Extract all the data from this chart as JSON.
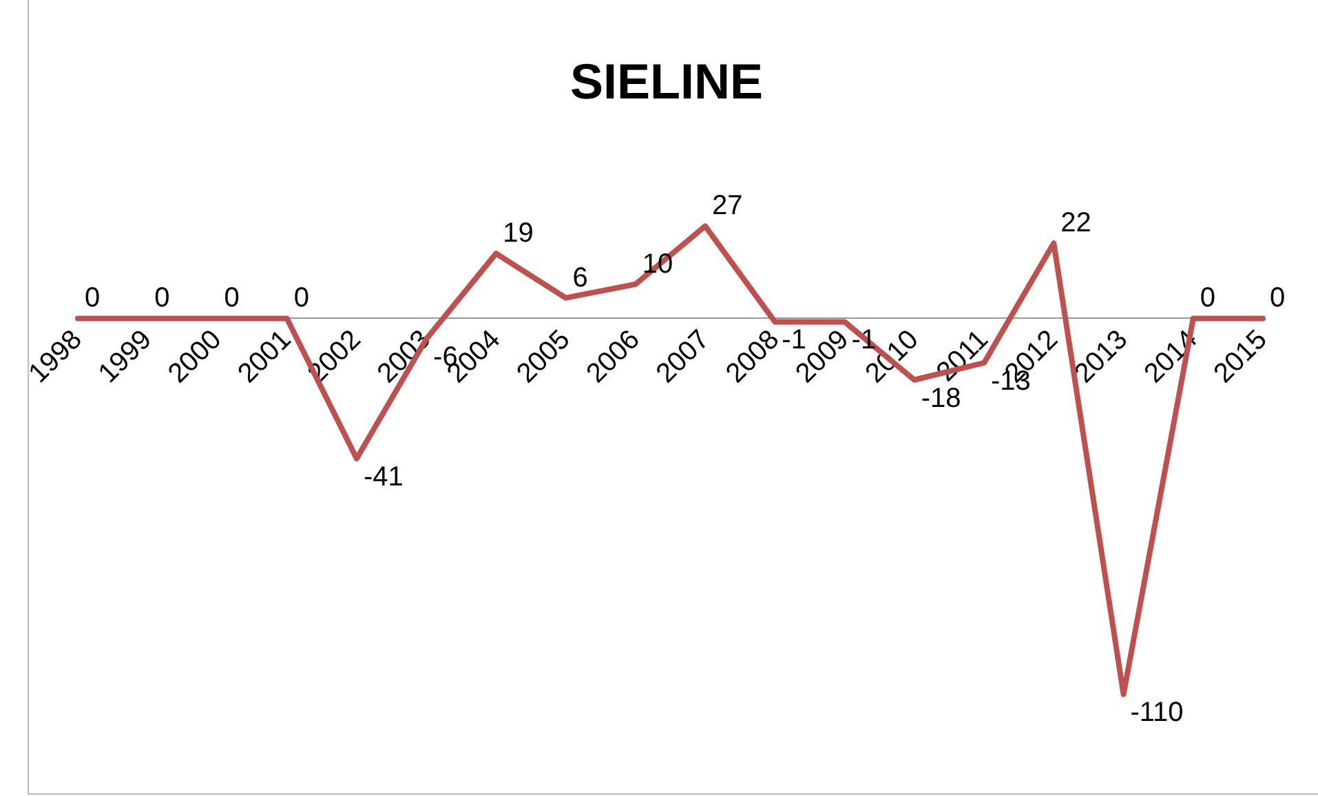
{
  "chart_data": {
    "type": "line",
    "title": "SIELINE",
    "categories": [
      "1998",
      "1999",
      "2000",
      "2001",
      "2002",
      "2003",
      "2004",
      "2005",
      "2006",
      "2007",
      "2008",
      "2009",
      "2010",
      "2011",
      "2012",
      "2013",
      "2014",
      "2015"
    ],
    "series": [
      {
        "color": "#c0504d",
        "values": [
          0,
          0,
          0,
          0,
          -41,
          -6,
          19,
          6,
          10,
          27,
          -1,
          -1,
          -18,
          -13,
          22,
          -110,
          0,
          0
        ]
      }
    ],
    "data_labels": true,
    "legend": false,
    "grid": false,
    "marker": "none",
    "line_style": "solid"
  }
}
